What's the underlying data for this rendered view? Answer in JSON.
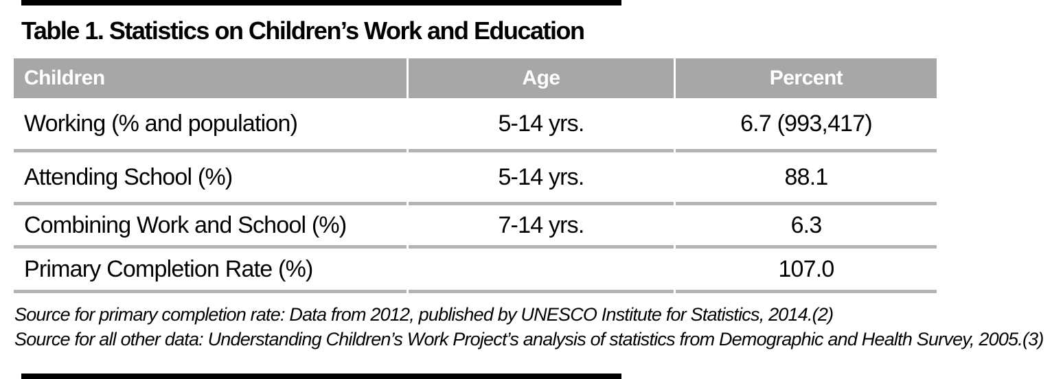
{
  "title": "Table 1. Statistics on Children’s Work and Education",
  "colors": {
    "header_background": "#a7a7a7",
    "header_text": "#ffffff",
    "row_divider": "#b3b3b3",
    "rule_bar": "#000000",
    "body_text": "#000000",
    "page_background": "#ffffff"
  },
  "table": {
    "header": {
      "children": "Children",
      "age": "Age",
      "percent": "Percent"
    },
    "rows": [
      {
        "children": "Working (% and population)",
        "age": "5-14 yrs.",
        "percent": "6.7 (993,417)"
      },
      {
        "children": "Attending School (%)",
        "age": "5-14 yrs.",
        "percent": "88.1"
      },
      {
        "children": "Combining Work and School (%)",
        "age": "7-14 yrs.",
        "percent": "6.3"
      },
      {
        "children": "Primary Completion Rate (%)",
        "age": "",
        "percent": "107.0"
      }
    ]
  },
  "sources": {
    "line1": "Source for primary completion rate: Data from 2012, published by UNESCO Institute for Statistics, 2014.(2)",
    "line2": "Source for all other data: Understanding Children’s Work Project’s analysis of statistics from Demographic and Health Survey, 2005.(3)"
  }
}
